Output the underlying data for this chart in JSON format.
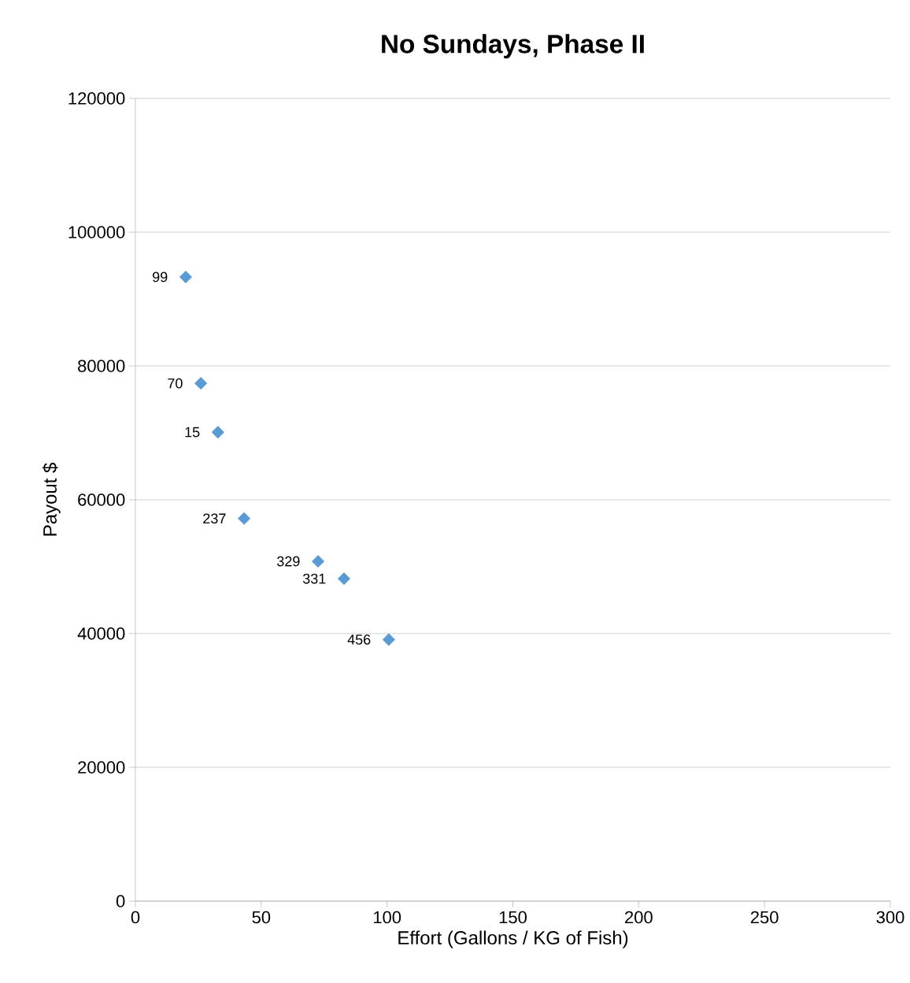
{
  "chart_data": {
    "type": "scatter",
    "title": "No Sundays, Phase II",
    "xlabel": "Effort (Gallons / KG of Fish)",
    "ylabel": "Payout $",
    "x": [
      20.0,
      26.0,
      32.8,
      43.2,
      72.6,
      82.9,
      100.7
    ],
    "values": [
      93300,
      77400,
      70100,
      57200,
      50800,
      48200,
      39100
    ],
    "color": "#5b9bd5",
    "marker": "diamond",
    "grid": "y",
    "xlim": [
      0,
      300
    ],
    "ylim": [
      0,
      120000
    ],
    "xticks": [
      0,
      50,
      100,
      150,
      200,
      250,
      300
    ],
    "yticks": [
      0,
      20000,
      40000,
      60000,
      80000,
      100000,
      120000
    ],
    "annotations": [
      {
        "text": "99",
        "x": 20.0,
        "y": 93300
      },
      {
        "text": "70",
        "x": 26.0,
        "y": 77400
      },
      {
        "text": "15",
        "x": 32.8,
        "y": 70100
      },
      {
        "text": "237",
        "x": 43.2,
        "y": 57200
      },
      {
        "text": "329",
        "x": 72.6,
        "y": 50800
      },
      {
        "text": "331",
        "x": 82.9,
        "y": 48200
      },
      {
        "text": "456",
        "x": 100.7,
        "y": 39100
      }
    ]
  }
}
